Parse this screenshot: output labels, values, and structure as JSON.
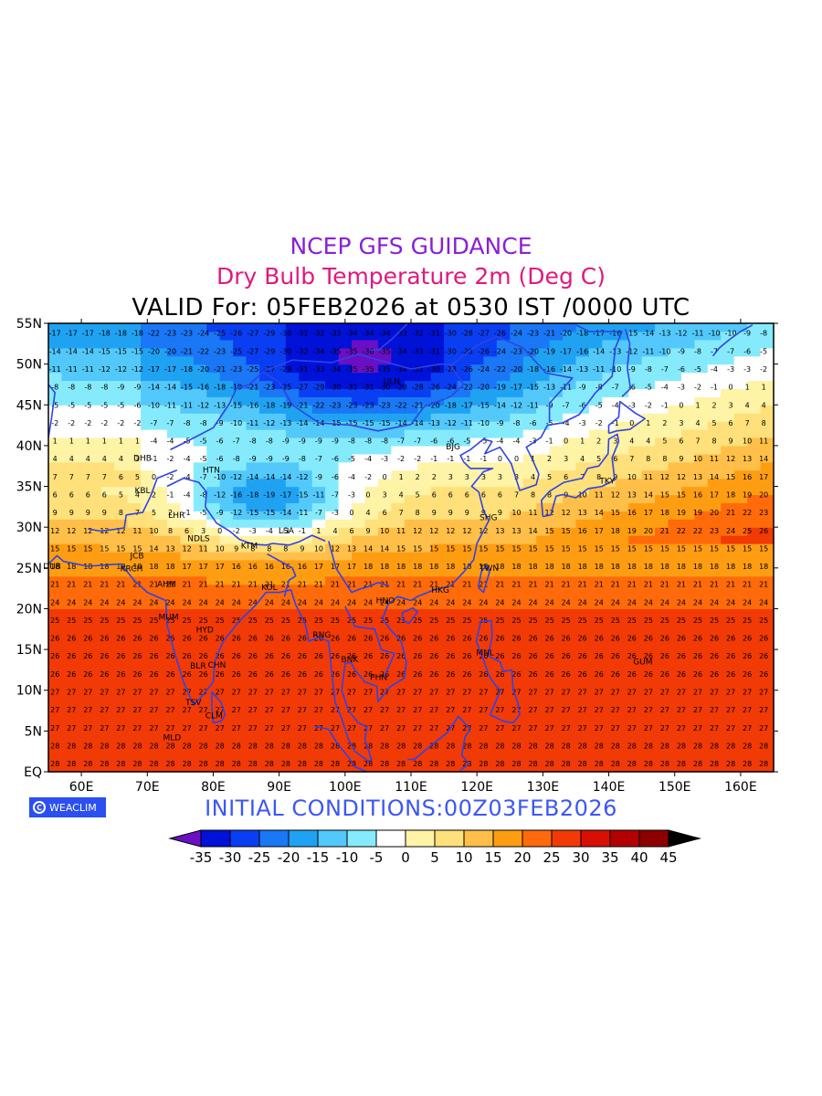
{
  "titles": {
    "line1": "NCEP GFS GUIDANCE",
    "line2": "Dry Bulb Temperature 2m (Deg C)",
    "line3": "VALID For: 05FEB2026 at 0530 IST /0000 UTC"
  },
  "initial_conditions": "INITIAL  CONDITIONS:00Z03FEB2026",
  "logo_text": "WEACLIM",
  "map": {
    "lon_range": [
      55,
      165
    ],
    "lat_range": [
      0,
      55
    ],
    "lat_labels": [
      "55N",
      "50N",
      "45N",
      "40N",
      "35N",
      "30N",
      "25N",
      "20N",
      "15N",
      "10N",
      "5N",
      "EQ"
    ],
    "lon_labels": [
      "60E",
      "70E",
      "80E",
      "90E",
      "100E",
      "110E",
      "120E",
      "130E",
      "140E",
      "150E",
      "160E"
    ],
    "stations": [
      {
        "code": "DHB",
        "lon": 69,
        "lat": 38.5
      },
      {
        "code": "KBL",
        "lon": 69.2,
        "lat": 34.5
      },
      {
        "code": "HTN",
        "lon": 79.5,
        "lat": 37
      },
      {
        "code": "LHR",
        "lon": 74.3,
        "lat": 31.5
      },
      {
        "code": "JCB",
        "lon": 68.5,
        "lat": 26.5
      },
      {
        "code": "NDLS",
        "lon": 77.2,
        "lat": 28.6
      },
      {
        "code": "KTM",
        "lon": 85.3,
        "lat": 27.7
      },
      {
        "code": "LSA",
        "lon": 91,
        "lat": 29.6
      },
      {
        "code": "DUB",
        "lon": 55.3,
        "lat": 25.2
      },
      {
        "code": "KRCH",
        "lon": 67,
        "lat": 24.9
      },
      {
        "code": "AHM",
        "lon": 72.6,
        "lat": 23
      },
      {
        "code": "KOL",
        "lon": 88.4,
        "lat": 22.6
      },
      {
        "code": "MUM",
        "lon": 72.8,
        "lat": 19
      },
      {
        "code": "HYD",
        "lon": 78.5,
        "lat": 17.4
      },
      {
        "code": "RNG",
        "lon": 96.2,
        "lat": 16.8
      },
      {
        "code": "BLR",
        "lon": 77.6,
        "lat": 13
      },
      {
        "code": "CHN",
        "lon": 80.3,
        "lat": 13.1
      },
      {
        "code": "BNK",
        "lon": 100.5,
        "lat": 13.8
      },
      {
        "code": "PHN",
        "lon": 104.9,
        "lat": 11.6
      },
      {
        "code": "TSV",
        "lon": 76.9,
        "lat": 8.5
      },
      {
        "code": "CLM",
        "lon": 79.9,
        "lat": 6.9
      },
      {
        "code": "MLD",
        "lon": 73.5,
        "lat": 4.2
      },
      {
        "code": "HNO",
        "lon": 105.8,
        "lat": 21
      },
      {
        "code": "HKG",
        "lon": 114.2,
        "lat": 22.3
      },
      {
        "code": "TWN",
        "lon": 121.5,
        "lat": 25
      },
      {
        "code": "SHG",
        "lon": 121.5,
        "lat": 31.2
      },
      {
        "code": "BJG",
        "lon": 116.4,
        "lat": 39.9
      },
      {
        "code": "TKY",
        "lon": 139.7,
        "lat": 35.7
      },
      {
        "code": "MNL",
        "lon": 121,
        "lat": 14.6
      },
      {
        "code": "GUM",
        "lon": 144.8,
        "lat": 13.5
      },
      {
        "code": "ULN",
        "lon": 106.9,
        "lat": 47.9
      }
    ]
  },
  "colorbar": {
    "labels": [
      "-35",
      "-30",
      "-25",
      "-20",
      "-15",
      "-10",
      "-5",
      "0",
      "5",
      "10",
      "15",
      "20",
      "25",
      "30",
      "35",
      "40",
      "45"
    ],
    "colors": [
      "#6a0fc4",
      "#0011d8",
      "#0a3ef2",
      "#1a77f5",
      "#20a2f3",
      "#53c8fa",
      "#86eafd",
      "#ffffff",
      "#fff3a6",
      "#ffe07a",
      "#ffbf48",
      "#ff9d12",
      "#ff6a0a",
      "#f23a06",
      "#d81004",
      "#b30002",
      "#8c0000",
      "#000000"
    ]
  },
  "colors": {
    "title1": "#8a1fd8",
    "title2": "#e0187f",
    "initial": "#3b57f5",
    "coast": "#2f43e6"
  }
}
